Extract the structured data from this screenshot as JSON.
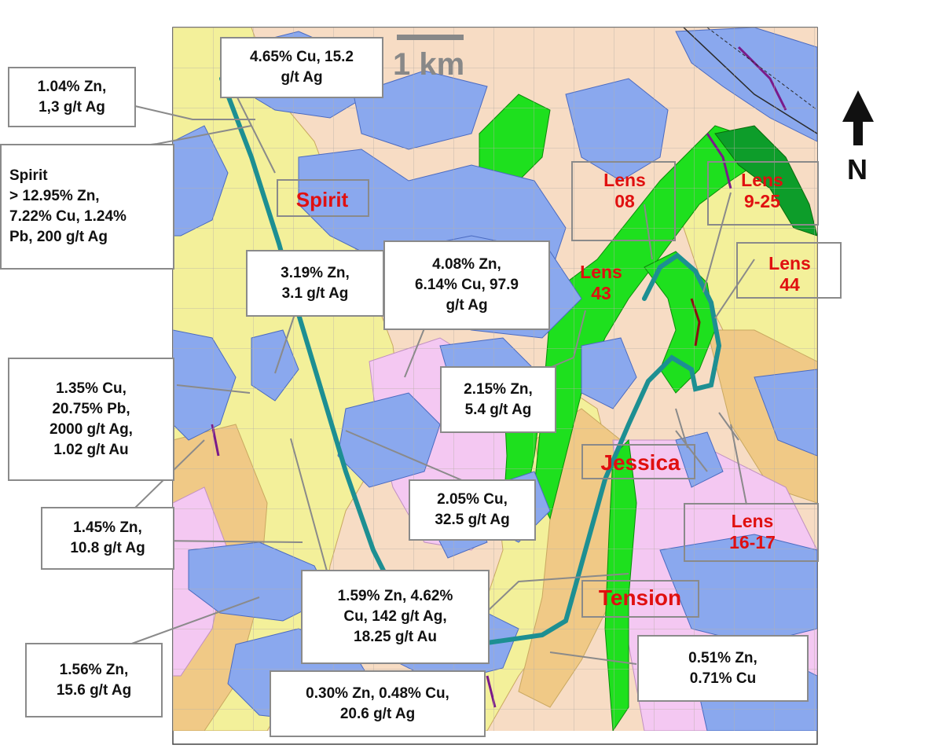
{
  "scale_bar": {
    "label": "1 km"
  },
  "north_arrow": {
    "label": "N"
  },
  "colors": {
    "background": "#f7dcc4",
    "yellow_unit": "#f3f09a",
    "blue_unit": "#8aa8ee",
    "green_unit": "#1ee01e",
    "pink_unit": "#f4c8f2",
    "tan_unit": "#f0c986",
    "trace_line": "#1d8f92",
    "label_red": "#e01010"
  },
  "deposits": [
    {
      "id": "spirit",
      "label": "Spirit"
    },
    {
      "id": "lens-08",
      "label": "Lens\n08"
    },
    {
      "id": "lens-9-25",
      "label": "Lens\n9-25"
    },
    {
      "id": "lens-43",
      "label": "Lens\n43"
    },
    {
      "id": "lens-44",
      "label": "Lens\n44"
    },
    {
      "id": "jessica",
      "label": "Jessica"
    },
    {
      "id": "lens-16-17",
      "label": "Lens\n16-17"
    },
    {
      "id": "tension",
      "label": "Tension"
    }
  ],
  "assays": [
    {
      "id": "a1",
      "text": "4.65% Cu, 15.2\ng/t Ag"
    },
    {
      "id": "a2",
      "text": "1.04% Zn,\n1,3 g/t Ag"
    },
    {
      "id": "a3",
      "text": "Spirit\n> 12.95% Zn,\n7.22% Cu, 1.24%\nPb, 200 g/t Ag"
    },
    {
      "id": "a4",
      "text": "3.19% Zn,\n3.1 g/t Ag"
    },
    {
      "id": "a5",
      "text": "4.08% Zn,\n6.14% Cu, 97.9\ng/t Ag"
    },
    {
      "id": "a6",
      "text": "2.15% Zn,\n5.4 g/t Ag"
    },
    {
      "id": "a7",
      "text": "1.35% Cu,\n20.75% Pb,\n2000 g/t Ag,\n1.02 g/t Au"
    },
    {
      "id": "a8",
      "text": "2.05% Cu,\n32.5 g/t Ag"
    },
    {
      "id": "a9",
      "text": "1.45% Zn,\n10.8 g/t Ag"
    },
    {
      "id": "a10",
      "text": "1.59% Zn, 4.62%\nCu, 142 g/t Ag,\n18.25 g/t Au"
    },
    {
      "id": "a11",
      "text": "0.51% Zn,\n0.71% Cu"
    },
    {
      "id": "a12",
      "text": "1.56% Zn,\n15.6 g/t Ag"
    },
    {
      "id": "a13",
      "text": "0.30% Zn, 0.48% Cu,\n20.6 g/t Ag"
    }
  ]
}
